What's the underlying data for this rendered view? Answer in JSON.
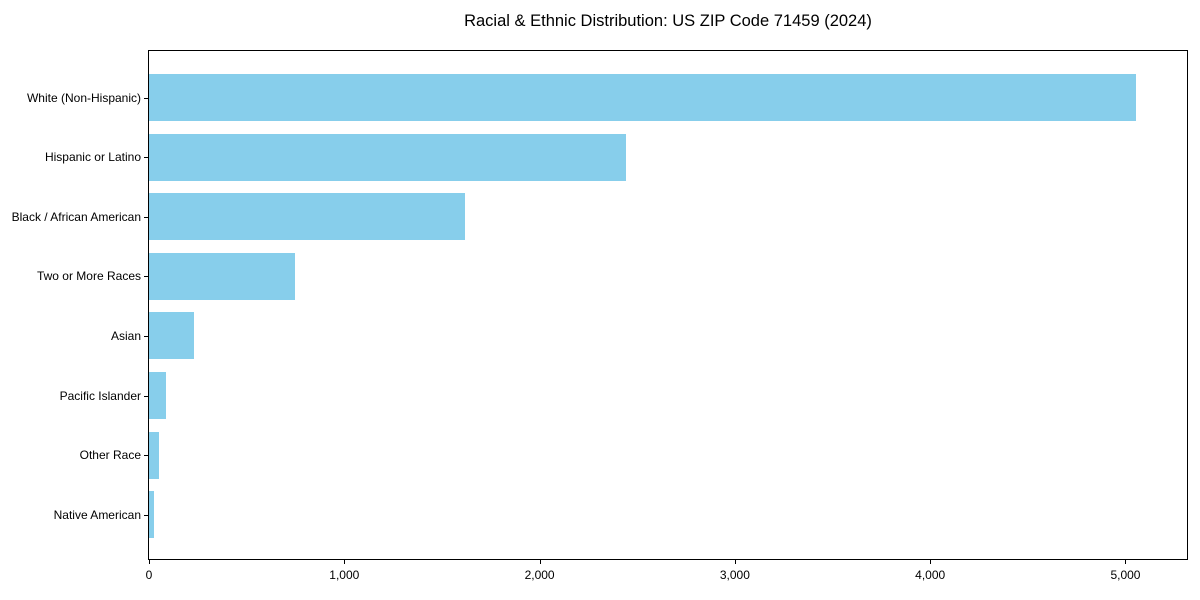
{
  "page": {
    "background": "#ffffff"
  },
  "chart_data": {
    "type": "bar",
    "orientation": "horizontal",
    "title": "Racial & Ethnic Distribution: US ZIP Code 71459 (2024)",
    "categories": [
      "White (Non-Hispanic)",
      "Hispanic or Latino",
      "Black / African American",
      "Two or More Races",
      "Asian",
      "Pacific Islander",
      "Other Race",
      "Native American"
    ],
    "values": [
      5055,
      2440,
      1620,
      750,
      230,
      85,
      50,
      25
    ],
    "bar_color": "#87CEEB",
    "xlabel": "",
    "ylabel": "",
    "xlim": [
      0,
      5315
    ],
    "x_ticks": [
      {
        "value": 0,
        "label": "0"
      },
      {
        "value": 1000,
        "label": "1,000"
      },
      {
        "value": 2000,
        "label": "2,000"
      },
      {
        "value": 3000,
        "label": "3,000"
      },
      {
        "value": 4000,
        "label": "4,000"
      },
      {
        "value": 5000,
        "label": "5,000"
      }
    ],
    "grid": false,
    "legend": false
  }
}
